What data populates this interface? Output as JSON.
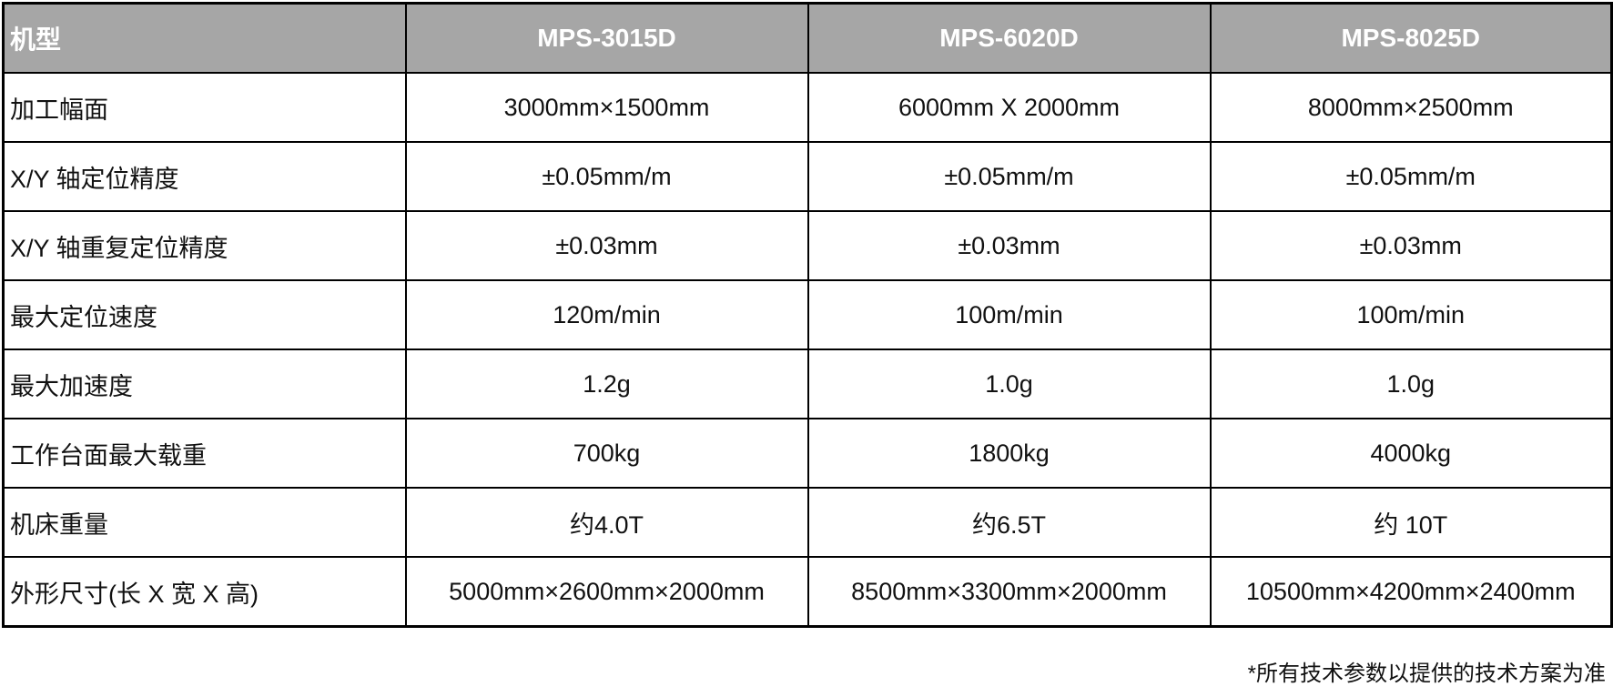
{
  "header": {
    "label": "机型",
    "models": [
      "MPS-3015D",
      "MPS-6020D",
      "MPS-8025D"
    ]
  },
  "rows": [
    {
      "label": "加工幅面",
      "values": [
        "3000mm×1500mm",
        "6000mm X 2000mm",
        "8000mm×2500mm"
      ]
    },
    {
      "label": "X/Y 轴定位精度",
      "values": [
        "±0.05mm/m",
        "±0.05mm/m",
        "±0.05mm/m"
      ]
    },
    {
      "label": "X/Y 轴重复定位精度",
      "values": [
        "±0.03mm",
        "±0.03mm",
        "±0.03mm"
      ]
    },
    {
      "label": "最大定位速度",
      "values": [
        "120m/min",
        "100m/min",
        "100m/min"
      ]
    },
    {
      "label": "最大加速度",
      "values": [
        "1.2g",
        "1.0g",
        "1.0g"
      ]
    },
    {
      "label": "工作台面最大载重",
      "values": [
        "700kg",
        "1800kg",
        "4000kg"
      ]
    },
    {
      "label": "机床重量",
      "values": [
        "约4.0T",
        "约6.5T",
        "约 10T"
      ]
    },
    {
      "label": "外形尺寸(长 X 宽 X 高)",
      "values": [
        "5000mm×2600mm×2000mm",
        "8500mm×3300mm×2000mm",
        "10500mm×4200mm×2400mm"
      ]
    }
  ],
  "footnote": "*所有技术参数以提供的技术方案为准",
  "colors": {
    "header_bg": "#a6a6a6",
    "header_text": "#ffffff",
    "border": "#000000"
  }
}
